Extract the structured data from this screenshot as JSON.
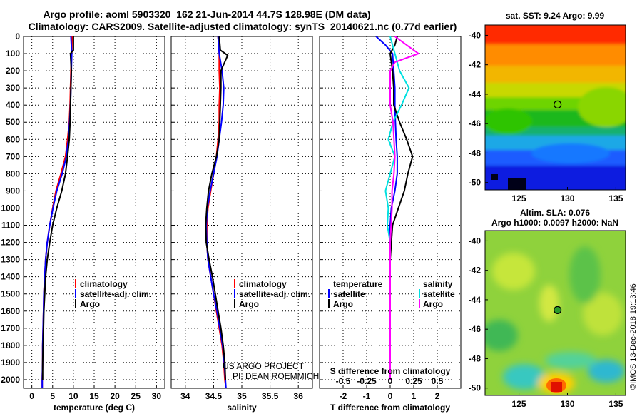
{
  "header": {
    "title_line1": "Argo profile: aoml 5903320_162 21-Jun-2014 44.7S 128.98E (DM data)",
    "title_line2": "Climatology: CARS2009. Satellite-adjusted climatology: synTS_20140621.nc (0.77d earlier)"
  },
  "depth_axis": {
    "ticks": [
      0,
      100,
      200,
      300,
      400,
      500,
      600,
      700,
      800,
      900,
      1000,
      1100,
      1200,
      1300,
      1400,
      1500,
      1600,
      1700,
      1800,
      1900,
      2000
    ],
    "range": [
      0,
      2050
    ]
  },
  "colors": {
    "climatology": "#ff0000",
    "satellite": "#0000ff",
    "argo": "#000000",
    "sal_satellite": "#00e0e0",
    "sal_argo": "#ff00ff"
  },
  "chart_data": [
    {
      "type": "line",
      "id": "temperature",
      "xlabel": "temperature (deg C)",
      "xlim": [
        -2,
        32
      ],
      "xticks": [
        0,
        5,
        10,
        15,
        20,
        25,
        30
      ],
      "xtick_labels": [
        "0",
        "5",
        "10",
        "15",
        "20",
        "25",
        "30"
      ],
      "ylim": [
        0,
        2050
      ],
      "legend": [
        "climatology",
        "satellite-adj. clim.",
        "Argo"
      ],
      "series": [
        {
          "name": "climatology",
          "color": "#ff0000",
          "x": [
            9.7,
            9.6,
            9.4,
            9.3,
            9.2,
            9.0,
            8.6,
            8.1,
            7.0,
            5.8,
            5.0,
            4.3,
            3.7,
            3.3,
            3.1,
            2.9,
            2.8,
            2.7,
            2.6,
            2.6,
            2.5,
            2.5
          ],
          "depth": [
            0,
            100,
            200,
            300,
            400,
            500,
            600,
            700,
            800,
            900,
            1000,
            1100,
            1200,
            1300,
            1400,
            1500,
            1600,
            1700,
            1800,
            1900,
            2000,
            2050
          ]
        },
        {
          "name": "satellite-adj. clim.",
          "color": "#0000ff",
          "x": [
            9.4,
            9.6,
            9.5,
            9.4,
            9.3,
            9.1,
            8.8,
            8.3,
            7.3,
            6.0,
            5.1,
            4.3,
            3.7,
            3.3,
            3.1,
            2.9,
            2.8,
            2.7,
            2.6,
            2.6,
            2.5,
            2.5
          ],
          "depth": [
            0,
            100,
            200,
            300,
            400,
            500,
            600,
            700,
            800,
            900,
            1000,
            1100,
            1200,
            1300,
            1400,
            1500,
            1600,
            1700,
            1800,
            1900,
            2000,
            2050
          ]
        },
        {
          "name": "Argo",
          "color": "#000000",
          "x": [
            10.0,
            10.0,
            9.3,
            9.5,
            9.4,
            9.3,
            9.2,
            9.0,
            8.6,
            8.1,
            7.2,
            6.0,
            5.0,
            4.3,
            3.7,
            3.3,
            3.1,
            2.9,
            2.8,
            2.7,
            2.6,
            2.6
          ],
          "depth": [
            0,
            80,
            100,
            200,
            300,
            400,
            500,
            600,
            700,
            800,
            900,
            1000,
            1100,
            1200,
            1300,
            1400,
            1500,
            1600,
            1700,
            1800,
            1900,
            2000
          ]
        }
      ]
    },
    {
      "type": "line",
      "id": "salinity",
      "xlabel": "salinity",
      "xlim": [
        33.75,
        36.25
      ],
      "xticks": [
        34,
        34.5,
        35,
        35.5,
        36
      ],
      "xtick_labels": [
        "34",
        "34.5",
        "35",
        "35.5",
        "36"
      ],
      "ylim": [
        0,
        2050
      ],
      "legend": [
        "climatology",
        "satellite-adj. clim.",
        "Argo"
      ],
      "annotations": [
        "US ARGO PROJECT",
        "PI: DEAN ROEMMICH"
      ],
      "series": [
        {
          "name": "climatology",
          "color": "#ff0000",
          "x": [
            34.58,
            34.6,
            34.6,
            34.61,
            34.6,
            34.6,
            34.58,
            34.55,
            34.5,
            34.45,
            34.4,
            34.38,
            34.38,
            34.4,
            34.45,
            34.5,
            34.55,
            34.6,
            34.65,
            34.68,
            34.7,
            34.72
          ],
          "depth": [
            0,
            100,
            200,
            300,
            400,
            500,
            600,
            700,
            800,
            900,
            1000,
            1100,
            1200,
            1300,
            1400,
            1500,
            1600,
            1700,
            1800,
            1900,
            2000,
            2050
          ]
        },
        {
          "name": "satellite-adj. clim.",
          "color": "#0000ff",
          "x": [
            34.58,
            34.6,
            34.65,
            34.68,
            34.67,
            34.64,
            34.6,
            34.56,
            34.5,
            34.44,
            34.39,
            34.37,
            34.38,
            34.4,
            34.45,
            34.5,
            34.56,
            34.61,
            34.66,
            34.69,
            34.71,
            34.72
          ],
          "depth": [
            0,
            100,
            200,
            300,
            400,
            500,
            600,
            700,
            800,
            900,
            1000,
            1100,
            1200,
            1300,
            1400,
            1500,
            1600,
            1700,
            1800,
            1900,
            2000,
            2050
          ]
        },
        {
          "name": "Argo",
          "color": "#000000",
          "x": [
            34.6,
            34.62,
            34.75,
            34.63,
            34.63,
            34.62,
            34.61,
            34.6,
            34.55,
            34.47,
            34.41,
            34.38,
            34.36,
            34.37,
            34.42,
            34.48,
            34.53,
            34.58,
            34.63,
            34.67,
            34.7,
            34.71
          ],
          "depth": [
            0,
            80,
            110,
            200,
            300,
            400,
            500,
            600,
            700,
            800,
            900,
            1000,
            1100,
            1200,
            1300,
            1400,
            1500,
            1600,
            1700,
            1800,
            1900,
            2000
          ]
        }
      ]
    },
    {
      "type": "line",
      "id": "differences",
      "xlabel": "T difference from climatology",
      "xlim": [
        -3,
        3
      ],
      "xticks": [
        -2,
        -1,
        0,
        1,
        2
      ],
      "xtick_labels": [
        "-2",
        "-1",
        "0",
        "1",
        "2"
      ],
      "s_axis_label": "S difference from climatology",
      "s_ticks": [
        -0.5,
        -0.25,
        0,
        0.25,
        0.5
      ],
      "s_tick_labels": [
        "-0.5",
        "-0.25",
        "0",
        "0.25",
        "0.5"
      ],
      "ylim": [
        0,
        2050
      ],
      "legend_temperature": {
        "title": "temperature",
        "items": [
          "satellite",
          "Argo"
        ]
      },
      "legend_salinity": {
        "title": "salinity",
        "items": [
          "satellite",
          "Argo"
        ]
      },
      "series": [
        {
          "name": "temperature satellite",
          "color": "#0000ff",
          "x": [
            -0.6,
            -0.2,
            0.1,
            0.15,
            0.2,
            0.2,
            0.22,
            0.25,
            0.3,
            0.3,
            0.2,
            0.05,
            0,
            0,
            0,
            0,
            0,
            0,
            0,
            0,
            0
          ],
          "depth": [
            0,
            50,
            100,
            200,
            300,
            400,
            500,
            600,
            700,
            800,
            900,
            1000,
            1100,
            1200,
            1300,
            1400,
            1500,
            1600,
            1700,
            1800,
            2000
          ]
        },
        {
          "name": "temperature Argo",
          "color": "#000000",
          "x": [
            0.3,
            0.2,
            0,
            0.1,
            0.15,
            0.15,
            0.4,
            0.7,
            0.95,
            0.75,
            0.6,
            0.35,
            0.1,
            0.05,
            0,
            0,
            0,
            0,
            0,
            0,
            0
          ],
          "depth": [
            0,
            50,
            100,
            200,
            300,
            400,
            500,
            600,
            700,
            800,
            900,
            1000,
            1100,
            1200,
            1300,
            1400,
            1500,
            1600,
            1700,
            1800,
            2000
          ]
        },
        {
          "name": "salinity satellite",
          "color": "#00e0e0",
          "x": [
            0,
            0.05,
            0.1,
            0.2,
            0.12,
            0.03,
            -0.02,
            0.05,
            0,
            -0.05,
            -0.02,
            -0.03,
            0,
            0,
            0
          ],
          "depth": [
            0,
            100,
            200,
            300,
            400,
            500,
            600,
            700,
            800,
            900,
            1000,
            1100,
            1200,
            1400,
            2000
          ]
        },
        {
          "name": "salinity Argo",
          "color": "#ff00ff",
          "x": [
            0.05,
            0.2,
            0.3,
            0.05,
            0,
            0,
            0.03,
            0.05,
            0.04,
            0.02,
            0.02,
            0.01,
            0,
            0,
            0
          ],
          "depth": [
            0,
            60,
            100,
            150,
            200,
            400,
            500,
            700,
            800,
            900,
            1000,
            1100,
            1200,
            1400,
            2000
          ]
        }
      ]
    },
    {
      "type": "heatmap",
      "id": "sst_map",
      "title": "sat. SST: 9.24 Argo: 9.99",
      "xlim": [
        121.5,
        136
      ],
      "ylim": [
        -50.5,
        -39.3
      ],
      "xticks": [
        125,
        130,
        135
      ],
      "xtick_labels": [
        "125",
        "130",
        "135"
      ],
      "yticks": [
        -40,
        -42,
        -44,
        -46,
        -48,
        -50
      ],
      "ytick_labels": [
        "-40",
        "-42",
        "-44",
        "-46",
        "-48",
        "-50"
      ],
      "marker": {
        "lon": 128.98,
        "lat": -44.7
      }
    },
    {
      "type": "heatmap",
      "id": "sla_map",
      "title": "Altim. SLA: 0.076",
      "subtitle": "Argo h1000: 0.0097 h2000: NaN",
      "xlim": [
        121.5,
        136
      ],
      "ylim": [
        -50.5,
        -39.3
      ],
      "xticks": [
        125,
        130,
        135
      ],
      "xtick_labels": [
        "125",
        "130",
        "135"
      ],
      "yticks": [
        -40,
        -42,
        -44,
        -46,
        -48,
        -50
      ],
      "ytick_labels": [
        "-40",
        "-42",
        "-44",
        "-46",
        "-48",
        "-50"
      ],
      "marker": {
        "lon": 128.98,
        "lat": -44.7
      }
    }
  ],
  "credit": "©IMOS 13-Dec-2018 19:13:46"
}
